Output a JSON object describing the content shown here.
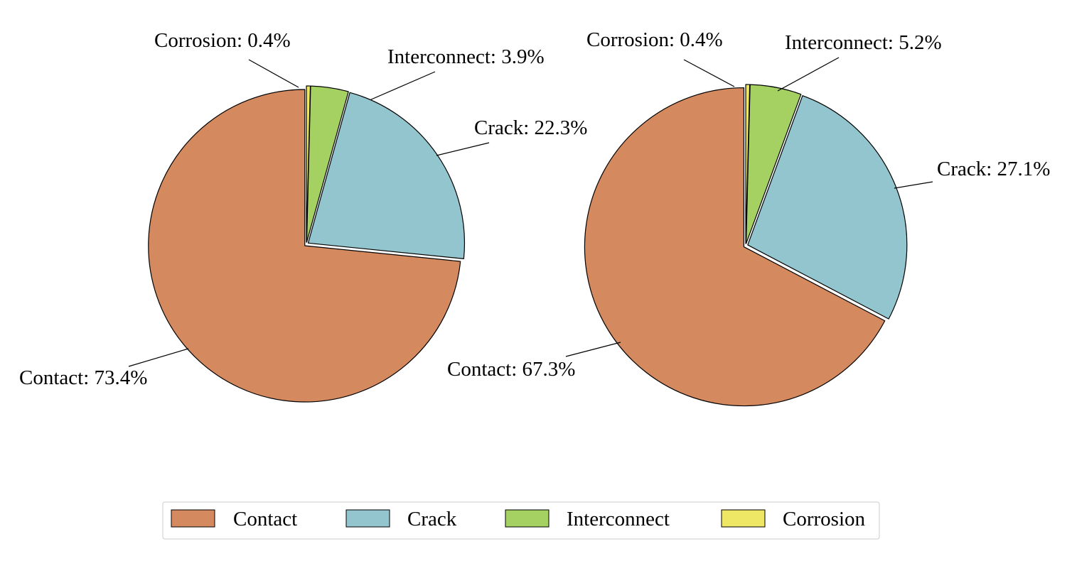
{
  "legend": {
    "entries": [
      {
        "label": "Contact",
        "color": "#D48A5E"
      },
      {
        "label": "Crack",
        "color": "#93C5CE"
      },
      {
        "label": "Interconnect",
        "color": "#A5D062"
      },
      {
        "label": "Corrosion",
        "color": "#EEE765"
      }
    ]
  },
  "chart_data": [
    {
      "type": "pie",
      "title": "",
      "slices": [
        {
          "label": "Corrosion",
          "value": 0.4,
          "text": "Corrosion: 0.4%",
          "color": "#EEE765"
        },
        {
          "label": "Interconnect",
          "value": 3.9,
          "text": "Interconnect: 3.9%",
          "color": "#A5D062"
        },
        {
          "label": "Crack",
          "value": 22.3,
          "text": "Crack: 22.3%",
          "color": "#93C5CE"
        },
        {
          "label": "Contact",
          "value": 73.4,
          "text": "Contact: 73.4%",
          "color": "#D48A5E"
        }
      ]
    },
    {
      "type": "pie",
      "title": "",
      "slices": [
        {
          "label": "Corrosion",
          "value": 0.4,
          "text": "Corrosion: 0.4%",
          "color": "#EEE765"
        },
        {
          "label": "Interconnect",
          "value": 5.2,
          "text": "Interconnect: 5.2%",
          "color": "#A5D062"
        },
        {
          "label": "Crack",
          "value": 27.1,
          "text": "Crack: 27.1%",
          "color": "#93C5CE"
        },
        {
          "label": "Contact",
          "value": 67.3,
          "text": "Contact: 67.3%",
          "color": "#D48A5E"
        }
      ]
    }
  ]
}
